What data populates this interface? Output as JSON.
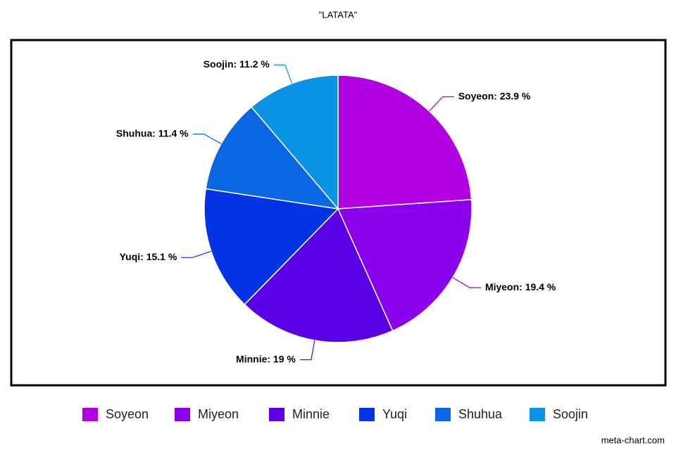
{
  "chart_data": {
    "type": "pie",
    "title": "\"LATATA\"",
    "categories": [
      "Soyeon",
      "Miyeon",
      "Minnie",
      "Yuqi",
      "Shuhua",
      "Soojin"
    ],
    "values": [
      23.9,
      19.4,
      19,
      15.1,
      11.4,
      11.2
    ],
    "value_labels": [
      "Soyeon: 23.9 %",
      "Miyeon: 19.4 %",
      "Minnie: 19 %",
      "Yuqi: 15.1 %",
      "Shuhua: 11.4 %",
      "Soojin: 11.2 %"
    ],
    "colors": [
      "#b000e2",
      "#8a00ea",
      "#5a00e4",
      "#0234e4",
      "#0a66e2",
      "#0a92e4"
    ],
    "legend": "bottom",
    "watermark": "meta-chart.com"
  }
}
